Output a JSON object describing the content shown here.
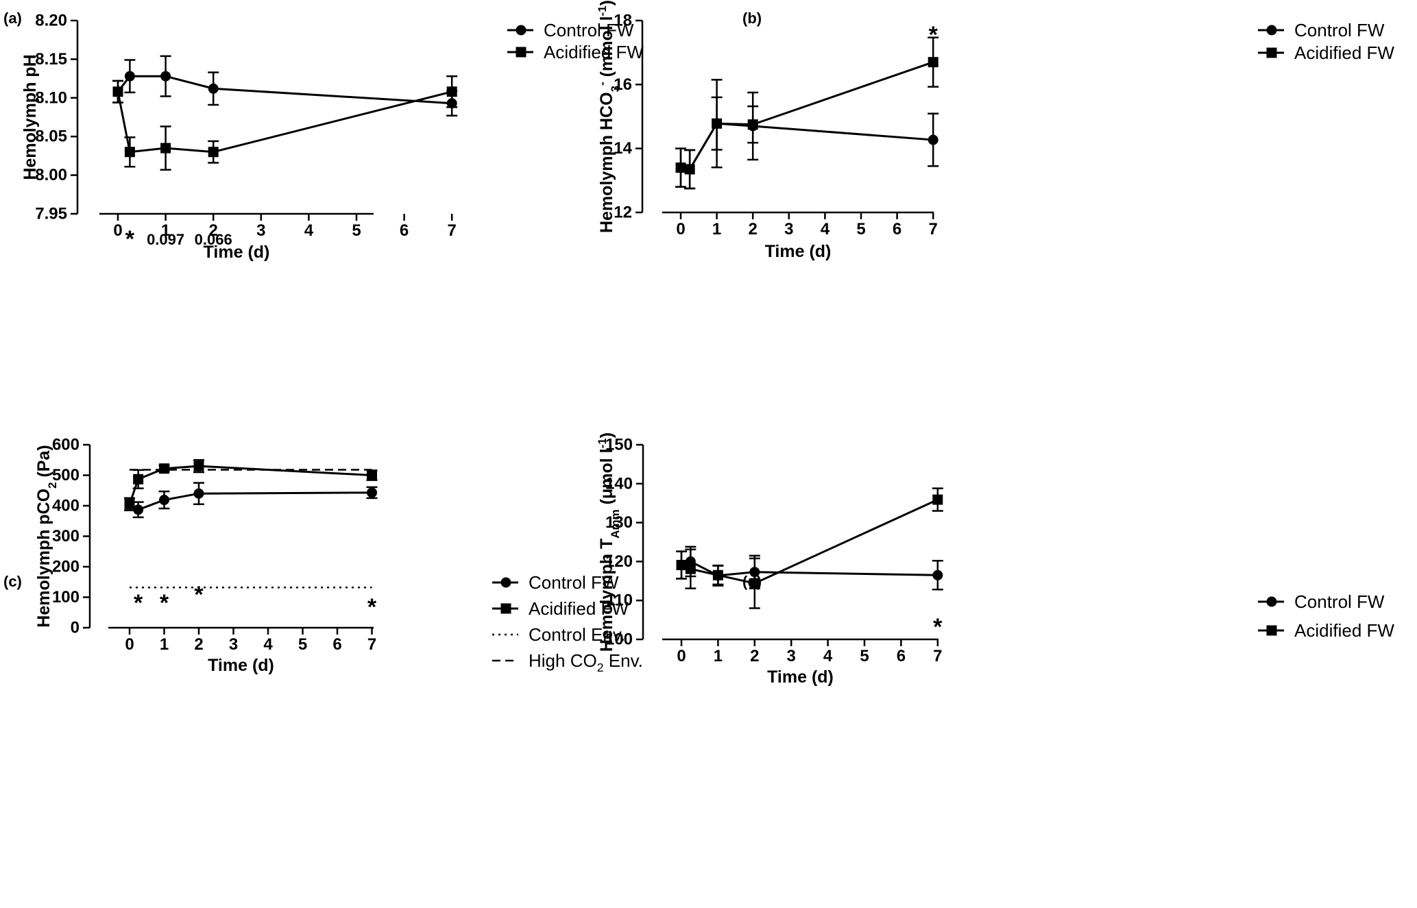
{
  "chart_data": [
    {
      "panel": "(a)",
      "type": "line",
      "xlabel": "Time (d)",
      "ylabel": "Hemolymph pH",
      "ylim": [
        7.95,
        8.2
      ],
      "yticks": [
        "7.95",
        "8.00",
        "8.05",
        "8.10",
        "8.15",
        "8.20"
      ],
      "xticks": [
        "0",
        "1",
        "2",
        "3",
        "4",
        "5",
        "6",
        "7"
      ],
      "legend": [
        "Control FW",
        "Acidified FW"
      ],
      "series": [
        {
          "name": "Control FW",
          "marker": "circle",
          "x": [
            0,
            0.25,
            1,
            2,
            7
          ],
          "y": [
            8.108,
            8.128,
            8.128,
            8.112,
            8.093
          ],
          "err": [
            0.014,
            0.021,
            0.026,
            0.021,
            0.016
          ]
        },
        {
          "name": "Acidified FW",
          "marker": "square",
          "x": [
            0,
            0.25,
            1,
            2,
            7
          ],
          "y": [
            8.108,
            8.03,
            8.035,
            8.03,
            8.108
          ],
          "err": [
            0.014,
            0.019,
            0.028,
            0.014,
            0.02
          ]
        }
      ],
      "annotations": [
        {
          "text": "*",
          "x": 0.25
        },
        {
          "text": "0.097",
          "x": 1
        },
        {
          "text": "0.066",
          "x": 2
        }
      ]
    },
    {
      "panel": "(b)",
      "type": "line",
      "xlabel": "Time (d)",
      "ylabel_parts": [
        "Hemolymph HCO",
        "3",
        "-",
        " (mmol l",
        "-1",
        ")"
      ],
      "ylim": [
        12,
        18
      ],
      "yticks": [
        "12",
        "14",
        "16",
        "18"
      ],
      "xticks": [
        "0",
        "1",
        "2",
        "3",
        "4",
        "5",
        "6",
        "7"
      ],
      "legend": [
        "Control FW",
        "Acidified FW"
      ],
      "series": [
        {
          "name": "Control FW",
          "marker": "circle",
          "x": [
            0,
            0.25,
            1,
            2,
            7
          ],
          "y": [
            13.4,
            13.35,
            14.78,
            14.7,
            14.27
          ],
          "err": [
            0.6,
            0.6,
            1.37,
            1.05,
            0.82
          ]
        },
        {
          "name": "Acidified FW",
          "marker": "square",
          "x": [
            0,
            0.25,
            1,
            2,
            7
          ],
          "y": [
            13.4,
            13.35,
            14.78,
            14.75,
            16.7
          ],
          "err": [
            0.6,
            0.6,
            0.82,
            0.57,
            0.77
          ]
        }
      ],
      "annotations": [
        {
          "text": "*",
          "x": 7
        }
      ]
    },
    {
      "panel": "(c)",
      "type": "line",
      "xlabel": "Time (d)",
      "ylabel_parts": [
        "Hemolymph pCO",
        "2",
        " (Pa)"
      ],
      "ylim": [
        0,
        600
      ],
      "yticks": [
        "0",
        "100",
        "200",
        "300",
        "400",
        "500",
        "600"
      ],
      "xticks": [
        "0",
        "1",
        "2",
        "3",
        "4",
        "5",
        "6",
        "7"
      ],
      "legend": [
        "Control FW",
        "Acidified FW",
        "Control Env.",
        "High CO2 Env."
      ],
      "legend_parts": [
        [
          "Control FW"
        ],
        [
          "Acidified FW"
        ],
        [
          "Control Env."
        ],
        [
          "High CO",
          "2",
          " Env."
        ]
      ],
      "series": [
        {
          "name": "Control FW",
          "marker": "circle",
          "x": [
            0,
            0.25,
            1,
            2,
            7
          ],
          "y": [
            405,
            387,
            419,
            440,
            443
          ],
          "err": [
            20,
            25,
            28,
            35,
            18
          ]
        },
        {
          "name": "Acidified FW",
          "marker": "square",
          "x": [
            0,
            0.25,
            1,
            2,
            7
          ],
          "y": [
            405,
            487,
            522,
            530,
            500
          ],
          "err": [
            20,
            30,
            10,
            20,
            16
          ]
        }
      ],
      "reference_lines": [
        {
          "name": "Control Env.",
          "y": 132,
          "style": "dotted"
        },
        {
          "name": "High CO2 Env.",
          "y": 518,
          "style": "dashed"
        }
      ],
      "annotations": [
        {
          "text": "*",
          "x": 0.25
        },
        {
          "text": "*",
          "x": 1
        },
        {
          "text": "*",
          "x": 2
        },
        {
          "text": "*",
          "x": 7
        }
      ]
    },
    {
      "panel": "(d)",
      "type": "line",
      "xlabel": "Time (d)",
      "ylabel_parts": [
        "Hemolymph T",
        "Amm",
        " (μmol l",
        "-1",
        ")"
      ],
      "ylim": [
        100,
        150
      ],
      "yticks": [
        "100",
        "110",
        "120",
        "130",
        "140",
        "150"
      ],
      "xticks": [
        "0",
        "1",
        "2",
        "3",
        "4",
        "5",
        "6",
        "7"
      ],
      "legend": [
        "Control FW",
        "Acidified FW"
      ],
      "series": [
        {
          "name": "Control FW",
          "marker": "circle",
          "x": [
            0,
            0.25,
            1,
            2,
            7
          ],
          "y": [
            119.1,
            120.0,
            116.4,
            117.3,
            116.5
          ],
          "err": [
            3.5,
            3.8,
            2.6,
            4.2,
            3.7
          ]
        },
        {
          "name": "Acidified FW",
          "marker": "square",
          "x": [
            0,
            0.25,
            1,
            2,
            7
          ],
          "y": [
            119.1,
            118.1,
            116.5,
            114.4,
            135.9
          ],
          "err": [
            3.5,
            5.0,
            2.4,
            6.4,
            2.9
          ]
        }
      ],
      "annotations": [
        {
          "text": "*",
          "x": 7
        }
      ]
    }
  ]
}
